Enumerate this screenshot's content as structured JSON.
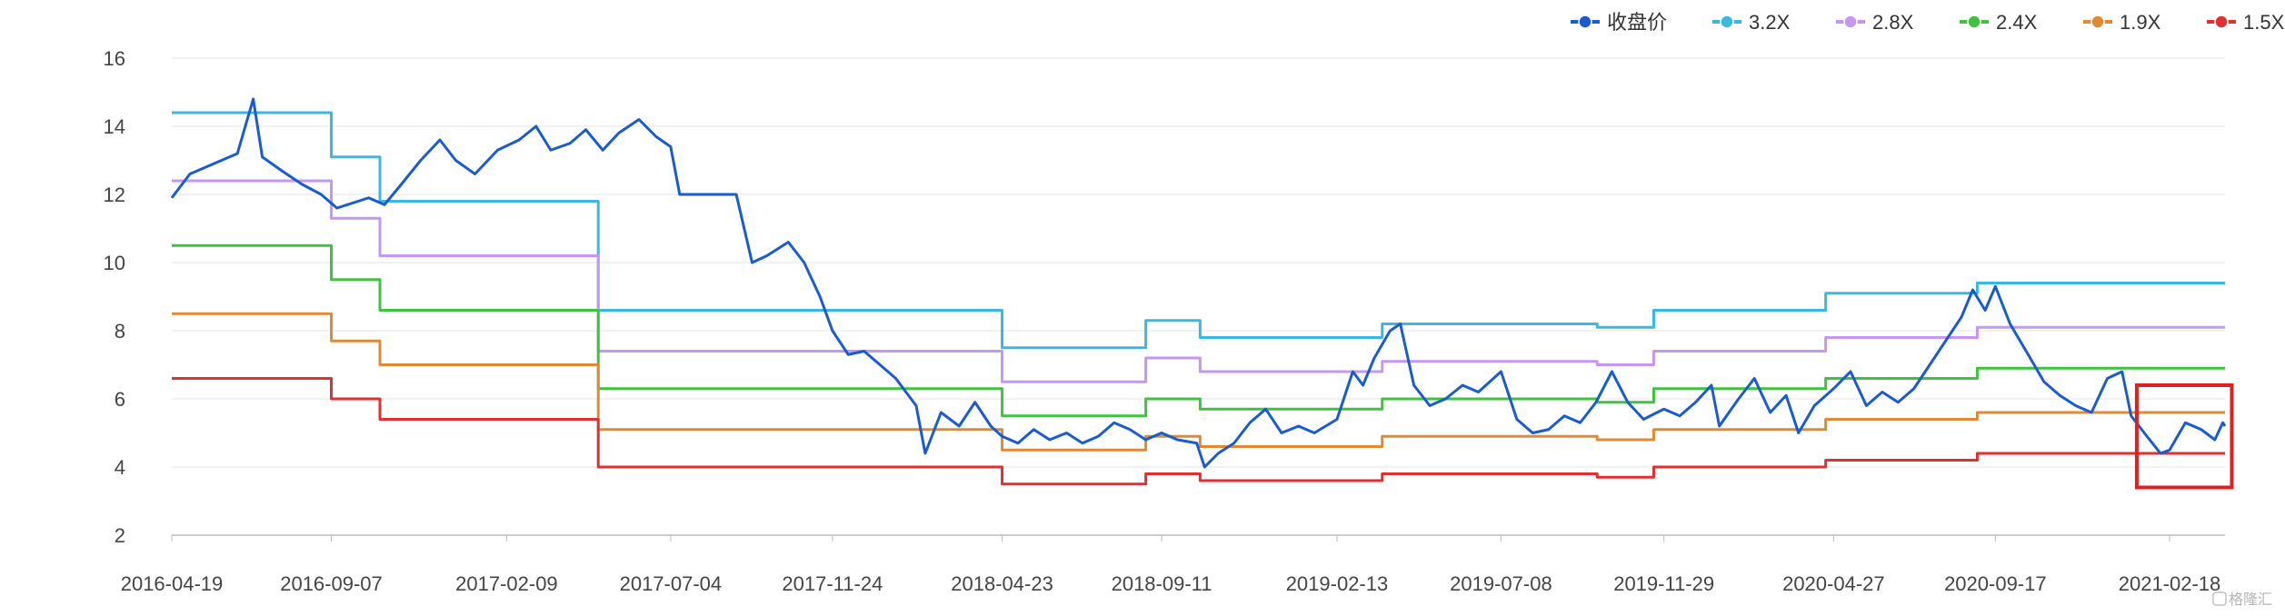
{
  "chart_data": {
    "type": "line",
    "y_range": [
      2,
      16
    ],
    "y_ticks": [
      2,
      4,
      6,
      8,
      10,
      12,
      14,
      16
    ],
    "x_tick_labels": [
      "2016-04-19",
      "2016-09-07",
      "2017-02-09",
      "2017-07-04",
      "2017-11-24",
      "2018-04-23",
      "2018-09-11",
      "2019-02-13",
      "2019-07-08",
      "2019-11-29",
      "2020-04-27",
      "2020-09-17",
      "2021-02-18"
    ],
    "grid": "horizontal",
    "legend_position": "top-right",
    "x_period": [
      "2016-04-19",
      "2021-04-08"
    ],
    "series": [
      {
        "name": "收盘价",
        "color": "#1a5cce",
        "style": "price",
        "values": [
          [
            "2016-04-19",
            11.9
          ],
          [
            "2016-05-05",
            12.6
          ],
          [
            "2016-05-26",
            12.9
          ],
          [
            "2016-06-16",
            13.2
          ],
          [
            "2016-06-30",
            14.8
          ],
          [
            "2016-07-08",
            13.1
          ],
          [
            "2016-07-25",
            12.7
          ],
          [
            "2016-08-12",
            12.3
          ],
          [
            "2016-08-29",
            12.0
          ],
          [
            "2016-09-12",
            11.6
          ],
          [
            "2016-10-10",
            11.9
          ],
          [
            "2016-10-24",
            11.7
          ],
          [
            "2016-11-08",
            12.3
          ],
          [
            "2016-11-25",
            13.0
          ],
          [
            "2016-12-12",
            13.6
          ],
          [
            "2016-12-26",
            13.0
          ],
          [
            "2017-01-12",
            12.6
          ],
          [
            "2017-02-01",
            13.3
          ],
          [
            "2017-02-20",
            13.6
          ],
          [
            "2017-03-07",
            14.0
          ],
          [
            "2017-03-20",
            13.3
          ],
          [
            "2017-04-06",
            13.5
          ],
          [
            "2017-04-20",
            13.9
          ],
          [
            "2017-05-05",
            13.3
          ],
          [
            "2017-05-19",
            13.8
          ],
          [
            "2017-06-06",
            14.2
          ],
          [
            "2017-06-21",
            13.7
          ],
          [
            "2017-07-04",
            13.4
          ],
          [
            "2017-07-12",
            12.0
          ],
          [
            "2017-08-31",
            12.0
          ],
          [
            "2017-09-14",
            10.0
          ],
          [
            "2017-09-27",
            10.2
          ],
          [
            "2017-10-16",
            10.6
          ],
          [
            "2017-10-30",
            10.0
          ],
          [
            "2017-11-13",
            9.0
          ],
          [
            "2017-11-24",
            8.0
          ],
          [
            "2017-12-08",
            7.3
          ],
          [
            "2017-12-22",
            7.4
          ],
          [
            "2018-01-05",
            7.0
          ],
          [
            "2018-01-19",
            6.6
          ],
          [
            "2018-02-06",
            5.8
          ],
          [
            "2018-02-14",
            4.4
          ],
          [
            "2018-02-28",
            5.6
          ],
          [
            "2018-03-16",
            5.2
          ],
          [
            "2018-03-30",
            5.9
          ],
          [
            "2018-04-13",
            5.2
          ],
          [
            "2018-04-23",
            4.9
          ],
          [
            "2018-05-07",
            4.7
          ],
          [
            "2018-05-21",
            5.1
          ],
          [
            "2018-06-04",
            4.8
          ],
          [
            "2018-06-19",
            5.0
          ],
          [
            "2018-07-03",
            4.7
          ],
          [
            "2018-07-17",
            4.9
          ],
          [
            "2018-07-31",
            5.3
          ],
          [
            "2018-08-14",
            5.1
          ],
          [
            "2018-08-28",
            4.8
          ],
          [
            "2018-09-11",
            5.0
          ],
          [
            "2018-09-25",
            4.8
          ],
          [
            "2018-10-12",
            4.7
          ],
          [
            "2018-10-19",
            4.0
          ],
          [
            "2018-10-31",
            4.4
          ],
          [
            "2018-11-14",
            4.7
          ],
          [
            "2018-11-28",
            5.3
          ],
          [
            "2018-12-12",
            5.7
          ],
          [
            "2018-12-26",
            5.0
          ],
          [
            "2019-01-10",
            5.2
          ],
          [
            "2019-01-24",
            5.0
          ],
          [
            "2019-02-13",
            5.4
          ],
          [
            "2019-02-27",
            6.8
          ],
          [
            "2019-03-08",
            6.4
          ],
          [
            "2019-03-18",
            7.2
          ],
          [
            "2019-04-01",
            8.0
          ],
          [
            "2019-04-10",
            8.2
          ],
          [
            "2019-04-22",
            6.4
          ],
          [
            "2019-05-06",
            5.8
          ],
          [
            "2019-05-20",
            6.0
          ],
          [
            "2019-06-04",
            6.4
          ],
          [
            "2019-06-18",
            6.2
          ],
          [
            "2019-07-08",
            6.8
          ],
          [
            "2019-07-22",
            5.4
          ],
          [
            "2019-08-05",
            5.0
          ],
          [
            "2019-08-19",
            5.1
          ],
          [
            "2019-09-02",
            5.5
          ],
          [
            "2019-09-16",
            5.3
          ],
          [
            "2019-09-30",
            5.9
          ],
          [
            "2019-10-14",
            6.8
          ],
          [
            "2019-10-28",
            5.9
          ],
          [
            "2019-11-11",
            5.4
          ],
          [
            "2019-11-29",
            5.7
          ],
          [
            "2019-12-13",
            5.5
          ],
          [
            "2019-12-27",
            5.9
          ],
          [
            "2020-01-10",
            6.4
          ],
          [
            "2020-01-17",
            5.2
          ],
          [
            "2020-02-03",
            6.0
          ],
          [
            "2020-02-17",
            6.6
          ],
          [
            "2020-03-02",
            5.6
          ],
          [
            "2020-03-16",
            6.1
          ],
          [
            "2020-03-27",
            5.0
          ],
          [
            "2020-04-10",
            5.8
          ],
          [
            "2020-04-27",
            6.3
          ],
          [
            "2020-05-12",
            6.8
          ],
          [
            "2020-05-26",
            5.8
          ],
          [
            "2020-06-09",
            6.2
          ],
          [
            "2020-06-23",
            5.9
          ],
          [
            "2020-07-07",
            6.3
          ],
          [
            "2020-07-21",
            7.0
          ],
          [
            "2020-08-04",
            7.7
          ],
          [
            "2020-08-18",
            8.4
          ],
          [
            "2020-08-28",
            9.2
          ],
          [
            "2020-09-08",
            8.6
          ],
          [
            "2020-09-17",
            9.3
          ],
          [
            "2020-09-30",
            8.2
          ],
          [
            "2020-10-16",
            7.3
          ],
          [
            "2020-10-30",
            6.5
          ],
          [
            "2020-11-13",
            6.1
          ],
          [
            "2020-11-27",
            5.8
          ],
          [
            "2020-12-11",
            5.6
          ],
          [
            "2020-12-25",
            6.6
          ],
          [
            "2021-01-07",
            6.8
          ],
          [
            "2021-01-15",
            5.5
          ],
          [
            "2021-01-29",
            4.9
          ],
          [
            "2021-02-10",
            4.4
          ],
          [
            "2021-02-18",
            4.5
          ],
          [
            "2021-03-04",
            5.3
          ],
          [
            "2021-03-18",
            5.1
          ],
          [
            "2021-03-30",
            4.8
          ],
          [
            "2021-04-06",
            5.3
          ],
          [
            "2021-04-08",
            5.2
          ]
        ]
      },
      {
        "name": "3.2X",
        "color": "#3ab8e0",
        "style": "step",
        "values": [
          [
            "2016-04-19",
            14.4
          ],
          [
            "2016-09-07",
            13.1
          ],
          [
            "2016-10-20",
            11.8
          ],
          [
            "2017-05-01",
            8.6
          ],
          [
            "2018-04-23",
            7.5
          ],
          [
            "2018-08-28",
            8.3
          ],
          [
            "2018-10-15",
            7.8
          ],
          [
            "2019-03-25",
            8.2
          ],
          [
            "2019-10-01",
            8.1
          ],
          [
            "2019-11-20",
            8.6
          ],
          [
            "2020-04-20",
            9.1
          ],
          [
            "2020-09-01",
            9.4
          ],
          [
            "2021-04-08",
            9.4
          ]
        ]
      },
      {
        "name": "2.8X",
        "color": "#c596f2",
        "style": "step",
        "values": [
          [
            "2016-04-19",
            12.4
          ],
          [
            "2016-09-07",
            11.3
          ],
          [
            "2016-10-20",
            10.2
          ],
          [
            "2017-05-01",
            7.4
          ],
          [
            "2018-04-23",
            6.5
          ],
          [
            "2018-08-28",
            7.2
          ],
          [
            "2018-10-15",
            6.8
          ],
          [
            "2019-03-25",
            7.1
          ],
          [
            "2019-10-01",
            7.0
          ],
          [
            "2019-11-20",
            7.4
          ],
          [
            "2020-04-20",
            7.8
          ],
          [
            "2020-09-01",
            8.1
          ],
          [
            "2021-04-08",
            8.1
          ]
        ]
      },
      {
        "name": "2.4X",
        "color": "#3fc23f",
        "style": "step",
        "values": [
          [
            "2016-04-19",
            10.5
          ],
          [
            "2016-09-07",
            9.5
          ],
          [
            "2016-10-20",
            8.6
          ],
          [
            "2017-05-01",
            6.3
          ],
          [
            "2018-04-23",
            5.5
          ],
          [
            "2018-08-28",
            6.0
          ],
          [
            "2018-10-15",
            5.7
          ],
          [
            "2019-03-25",
            6.0
          ],
          [
            "2019-10-01",
            5.9
          ],
          [
            "2019-11-20",
            6.3
          ],
          [
            "2020-04-20",
            6.6
          ],
          [
            "2020-09-01",
            6.9
          ],
          [
            "2021-04-08",
            6.9
          ]
        ]
      },
      {
        "name": "1.9X",
        "color": "#e08a35",
        "style": "step",
        "values": [
          [
            "2016-04-19",
            8.5
          ],
          [
            "2016-09-07",
            7.7
          ],
          [
            "2016-10-20",
            7.0
          ],
          [
            "2017-05-01",
            5.1
          ],
          [
            "2018-04-23",
            4.5
          ],
          [
            "2018-08-28",
            4.9
          ],
          [
            "2018-10-15",
            4.6
          ],
          [
            "2019-03-25",
            4.9
          ],
          [
            "2019-10-01",
            4.8
          ],
          [
            "2019-11-20",
            5.1
          ],
          [
            "2020-04-20",
            5.4
          ],
          [
            "2020-09-01",
            5.6
          ],
          [
            "2021-04-08",
            5.6
          ]
        ]
      },
      {
        "name": "1.5X",
        "color": "#e03030",
        "style": "step",
        "values": [
          [
            "2016-04-19",
            6.6
          ],
          [
            "2016-09-07",
            6.0
          ],
          [
            "2016-10-20",
            5.4
          ],
          [
            "2017-05-01",
            4.0
          ],
          [
            "2018-04-23",
            3.5
          ],
          [
            "2018-08-28",
            3.8
          ],
          [
            "2018-10-15",
            3.6
          ],
          [
            "2019-03-25",
            3.8
          ],
          [
            "2019-10-01",
            3.7
          ],
          [
            "2019-11-20",
            4.0
          ],
          [
            "2020-04-20",
            4.2
          ],
          [
            "2020-09-01",
            4.4
          ],
          [
            "2021-04-08",
            4.4
          ]
        ]
      }
    ],
    "highlight": {
      "x": [
        "2021-01-20",
        "2021-04-14"
      ],
      "y": [
        3.4,
        6.4
      ],
      "color": "#e02020"
    }
  },
  "watermark": "格隆汇"
}
